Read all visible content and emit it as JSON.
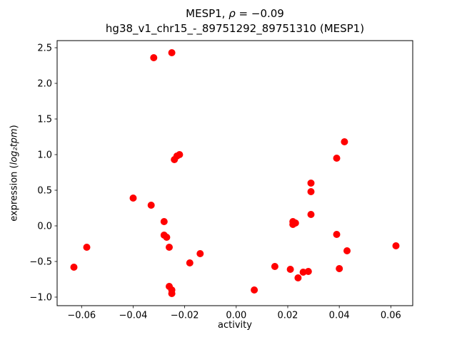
{
  "title": {
    "line1_prefix": "MESP1, ",
    "line1_math": "ρ",
    "line1_suffix": " = −0.09",
    "line2": "hg38_v1_chr15_-_89751292_89751310 (MESP1)"
  },
  "chart_data": {
    "type": "scatter",
    "title": "MESP1, ρ = −0.09",
    "subtitle": "hg38_v1_chr15_-_89751292_89751310 (MESP1)",
    "xlabel": "activity",
    "ylabel": "expression (log₂tpm)",
    "ylabel_parts": {
      "prefix": "expression (",
      "math": "log₂tpm",
      "suffix": ")"
    },
    "marker_color": "#ff0000",
    "axis_color": "#000000",
    "grid": false,
    "legend": "none",
    "xlim": [
      -0.0695,
      0.0685
    ],
    "ylim": [
      -1.12,
      2.6
    ],
    "xticks": [
      -0.06,
      -0.04,
      -0.02,
      0.0,
      0.02,
      0.04,
      0.06
    ],
    "xtick_labels": [
      "−0.06",
      "−0.04",
      "−0.02",
      "0.00",
      "0.02",
      "0.04",
      "0.06"
    ],
    "yticks": [
      -1.0,
      -0.5,
      0.0,
      0.5,
      1.0,
      1.5,
      2.0,
      2.5
    ],
    "ytick_labels": [
      "−1.0",
      "−0.5",
      "0.0",
      "0.5",
      "1.0",
      "1.5",
      "2.0",
      "2.5"
    ],
    "points": [
      [
        -0.063,
        -0.58
      ],
      [
        -0.058,
        -0.3
      ],
      [
        -0.04,
        0.39
      ],
      [
        -0.033,
        0.29
      ],
      [
        -0.032,
        2.36
      ],
      [
        -0.025,
        2.43
      ],
      [
        -0.028,
        0.06
      ],
      [
        -0.028,
        -0.13
      ],
      [
        -0.027,
        -0.16
      ],
      [
        -0.026,
        -0.3
      ],
      [
        -0.026,
        -0.85
      ],
      [
        -0.025,
        -0.9
      ],
      [
        -0.025,
        -0.95
      ],
      [
        -0.024,
        0.93
      ],
      [
        -0.023,
        0.98
      ],
      [
        -0.022,
        1.0
      ],
      [
        -0.018,
        -0.52
      ],
      [
        -0.014,
        -0.39
      ],
      [
        0.007,
        -0.9
      ],
      [
        0.015,
        -0.57
      ],
      [
        0.021,
        -0.61
      ],
      [
        0.022,
        0.02
      ],
      [
        0.022,
        0.06
      ],
      [
        0.023,
        0.04
      ],
      [
        0.024,
        -0.73
      ],
      [
        0.026,
        -0.65
      ],
      [
        0.028,
        -0.64
      ],
      [
        0.029,
        0.16
      ],
      [
        0.029,
        0.48
      ],
      [
        0.029,
        0.6
      ],
      [
        0.039,
        -0.12
      ],
      [
        0.039,
        0.95
      ],
      [
        0.04,
        -0.6
      ],
      [
        0.042,
        1.18
      ],
      [
        0.043,
        -0.35
      ],
      [
        0.062,
        -0.28
      ]
    ]
  }
}
